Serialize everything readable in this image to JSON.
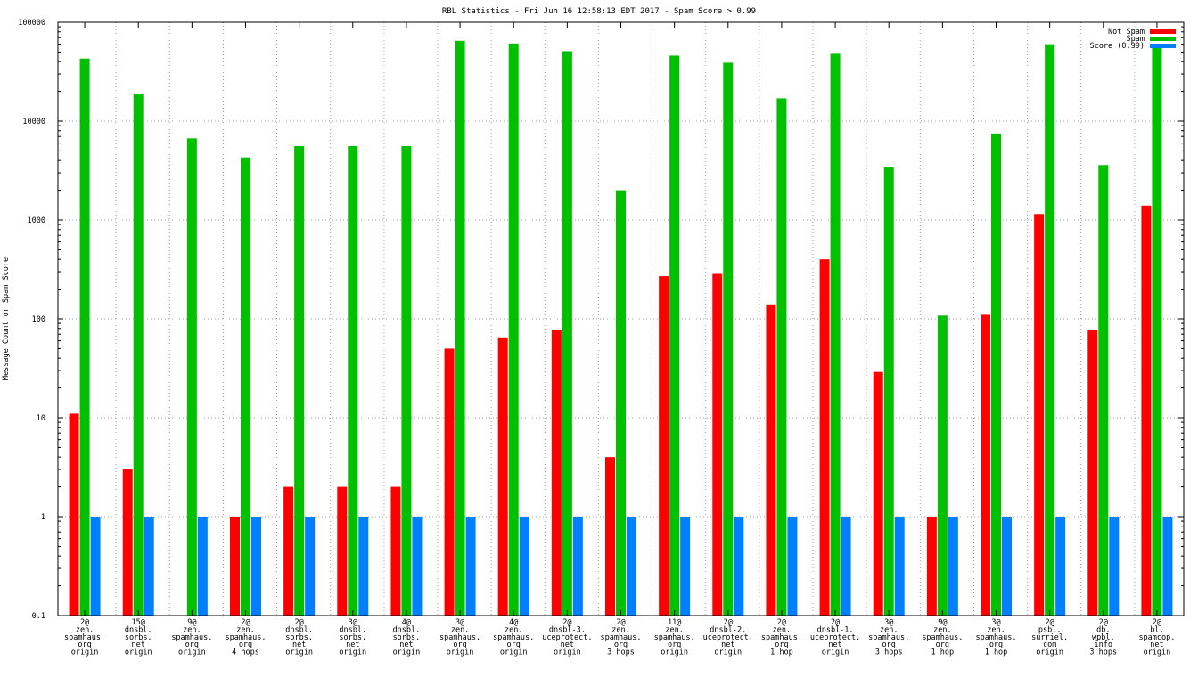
{
  "chart_data": {
    "type": "bar",
    "title": "RBL Statistics - Fri Jun 16 12:58:13 EDT 2017 - Spam Score > 0.99",
    "xlabel": "",
    "ylabel": "Message Count or Spam Score",
    "yscale": "log",
    "ylim": [
      0.1,
      100000
    ],
    "yticks": [
      "0.1",
      "1",
      "10",
      "100",
      "1000",
      "10000",
      "100000"
    ],
    "grid": true,
    "legend_position": "top-right",
    "categories": [
      [
        "2@",
        "zen.",
        "spamhaus.",
        "org",
        "origin"
      ],
      [
        "15@",
        "dnsbl.",
        "sorbs.",
        "net",
        "origin"
      ],
      [
        "9@",
        "zen.",
        "spamhaus.",
        "org",
        "origin"
      ],
      [
        "2@",
        "zen.",
        "spamhaus.",
        "org",
        "4 hops"
      ],
      [
        "2@",
        "dnsbl.",
        "sorbs.",
        "net",
        "origin"
      ],
      [
        "3@",
        "dnsbl.",
        "sorbs.",
        "net",
        "origin"
      ],
      [
        "4@",
        "dnsbl.",
        "sorbs.",
        "net",
        "origin"
      ],
      [
        "3@",
        "zen.",
        "spamhaus.",
        "org",
        "origin"
      ],
      [
        "4@",
        "zen.",
        "spamhaus.",
        "org",
        "origin"
      ],
      [
        "2@",
        "dnsbl-3.",
        "uceprotect.",
        "net",
        "origin"
      ],
      [
        "2@",
        "zen.",
        "spamhaus.",
        "org",
        "3 hops"
      ],
      [
        "11@",
        "zen.",
        "spamhaus.",
        "org",
        "origin"
      ],
      [
        "2@",
        "dnsbl-2.",
        "uceprotect.",
        "net",
        "origin"
      ],
      [
        "2@",
        "zen.",
        "spamhaus.",
        "org",
        "1 hop"
      ],
      [
        "2@",
        "dnsbl-1.",
        "uceprotect.",
        "net",
        "origin"
      ],
      [
        "3@",
        "zen.",
        "spamhaus.",
        "org",
        "3 hops"
      ],
      [
        "9@",
        "zen.",
        "spamhaus.",
        "org",
        "1 hop"
      ],
      [
        "3@",
        "zen.",
        "spamhaus.",
        "org",
        "1 hop"
      ],
      [
        "2@",
        "psbl.",
        "surriel.",
        "com",
        "origin"
      ],
      [
        "2@",
        "db.",
        "wpbl.",
        "info",
        "3 hops"
      ],
      [
        "2@",
        "bl.",
        "spamcop.",
        "net",
        "origin"
      ]
    ],
    "series": [
      {
        "name": "Not Spam",
        "color": "#ff0000",
        "values": [
          11,
          3,
          null,
          1,
          2,
          2,
          2,
          50,
          65,
          78,
          4,
          270,
          285,
          140,
          400,
          29,
          1,
          110,
          1150,
          78,
          1400
        ]
      },
      {
        "name": "Spam",
        "color": "#00c000",
        "values": [
          43000,
          19000,
          6700,
          4300,
          5600,
          5600,
          5600,
          65000,
          61000,
          51000,
          2000,
          46000,
          39000,
          17000,
          48000,
          3400,
          108,
          7500,
          60000,
          3600,
          57000
        ]
      },
      {
        "name": "Score (0.99)",
        "color": "#0080ff",
        "values": [
          1,
          1,
          1,
          1,
          1,
          1,
          1,
          1,
          1,
          1,
          1,
          1,
          1,
          1,
          1,
          1,
          1,
          1,
          1,
          1,
          1
        ]
      }
    ]
  }
}
